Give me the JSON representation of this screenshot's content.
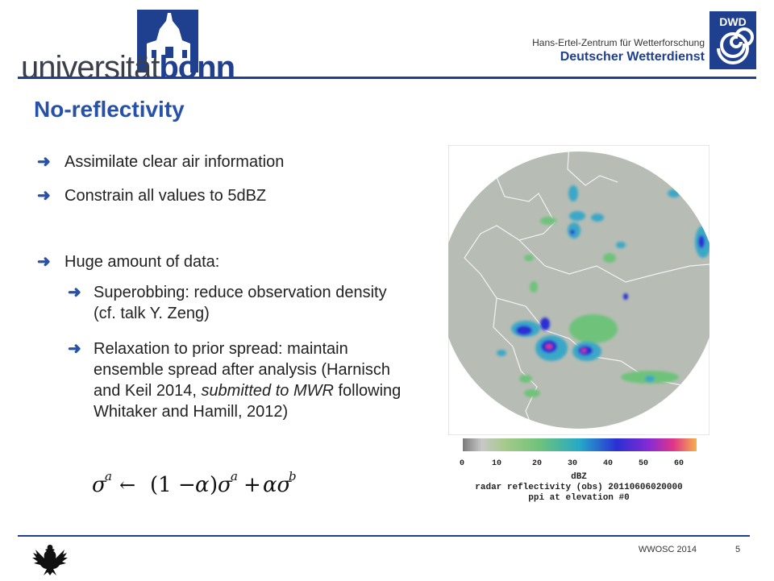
{
  "header": {
    "uni_logo_text_a": "universität",
    "uni_logo_text_b": "bonn",
    "dwd_subtitle": "Hans-Ertel-Zentrum für Wetterforschung",
    "dwd_title": "Deutscher Wetterdienst",
    "dwd_badge": "DWD"
  },
  "slide": {
    "title": "No-reflectivity",
    "bullets": [
      {
        "text": "Assimilate clear air information"
      },
      {
        "text": "Constrain all values to 5dBZ"
      },
      {
        "text": "Huge amount of data:"
      }
    ],
    "sub_bullets": [
      {
        "text": "Superobbing: reduce observation density (cf. talk Y. Zeng)"
      },
      {
        "text_a": "Relaxation to prior spread: maintain ensemble spread after analysis (Harnisch and Keil  2014, ",
        "text_em": "submitted to MWR",
        "text_b": " following Whitaker and Hamill, 2012)"
      }
    ]
  },
  "radar": {
    "colorbar_ticks": [
      "0",
      "10",
      "20",
      "30",
      "40",
      "50",
      "60"
    ],
    "colorbar_unit": "dBZ",
    "caption_line1": "radar reflectivity (obs) 20110606020000",
    "caption_line2": "ppi at elevation #0",
    "colors": {
      "background_disc": "#b7bdb4",
      "low": "#6ec27a",
      "mid": "#3aa7c7",
      "high": "#2b2fd3",
      "peak": "#e0358a"
    }
  },
  "footer": {
    "conference": "WWOSC 2014",
    "page_number": "5"
  },
  "colors": {
    "accent": "#1f3f8f",
    "title": "#2651a6"
  }
}
